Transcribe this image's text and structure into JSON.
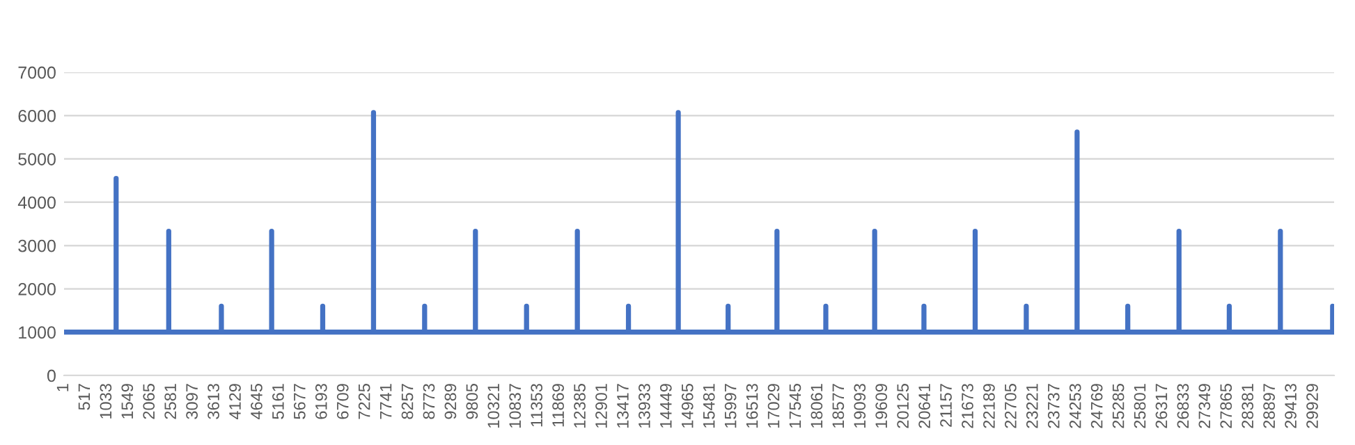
{
  "chart_data": {
    "type": "line",
    "x": [
      1,
      1247,
      1248,
      1249,
      2507,
      2508,
      2509,
      3768,
      3769,
      3770,
      4972,
      4973,
      4974,
      6195,
      6196,
      6197,
      7412,
      7413,
      7414,
      8636,
      8637,
      8638,
      9853,
      9854,
      9855,
      11077,
      11078,
      11079,
      12294,
      12295,
      12296,
      13518,
      13519,
      13520,
      14711,
      14712,
      14713,
      15905,
      15906,
      15907,
      17075,
      17076,
      17077,
      18245,
      18246,
      18247,
      19415,
      19416,
      19417,
      20595,
      20596,
      20597,
      21822,
      21823,
      21824,
      23046,
      23047,
      23048,
      24263,
      24264,
      24265,
      25477,
      25478,
      25479,
      26704,
      26705,
      26706,
      27908,
      27909,
      27910,
      29132,
      29133,
      29134,
      30383,
      30384,
      30385,
      30420
    ],
    "series": [
      {
        "color": "#4472c4",
        "values": [
          1000,
          1000,
          4550,
          1000,
          1000,
          3330,
          1000,
          1000,
          1600,
          1000,
          1000,
          3330,
          1000,
          1000,
          1600,
          1000,
          1000,
          6070,
          1000,
          1000,
          1600,
          1000,
          1000,
          3330,
          1000,
          1000,
          1600,
          1000,
          1000,
          3330,
          1000,
          1000,
          1600,
          1000,
          1000,
          6070,
          1000,
          1000,
          1600,
          1000,
          1000,
          3330,
          1000,
          1000,
          1600,
          1000,
          1000,
          3330,
          1000,
          1000,
          1600,
          1000,
          1000,
          3330,
          1000,
          1000,
          1600,
          1000,
          1000,
          5620,
          1000,
          1000,
          1600,
          1000,
          1000,
          3330,
          1000,
          1000,
          1600,
          1000,
          1000,
          3330,
          1000,
          1000,
          1600,
          1000,
          1000
        ]
      }
    ],
    "xlim": [
      1,
      30420
    ],
    "xticks": [
      1,
      517,
      1033,
      1549,
      2065,
      2581,
      3097,
      3613,
      4129,
      4645,
      5161,
      5677,
      6193,
      6709,
      7225,
      7741,
      8257,
      8773,
      9289,
      9805,
      10321,
      10837,
      11353,
      11869,
      12385,
      12901,
      13417,
      13933,
      14449,
      14965,
      15481,
      15997,
      16513,
      17029,
      17545,
      18061,
      18577,
      19093,
      19609,
      20125,
      20641,
      21157,
      21673,
      22189,
      22705,
      23221,
      23737,
      24253,
      24769,
      25285,
      25801,
      26317,
      26833,
      27349,
      27865,
      28381,
      28897,
      29413,
      29929
    ],
    "ylim": [
      0,
      7000
    ],
    "yticks": [
      0,
      1000,
      2000,
      3000,
      4000,
      5000,
      6000,
      7000
    ],
    "grid": "y",
    "marker": "none",
    "line_style": "solid"
  }
}
